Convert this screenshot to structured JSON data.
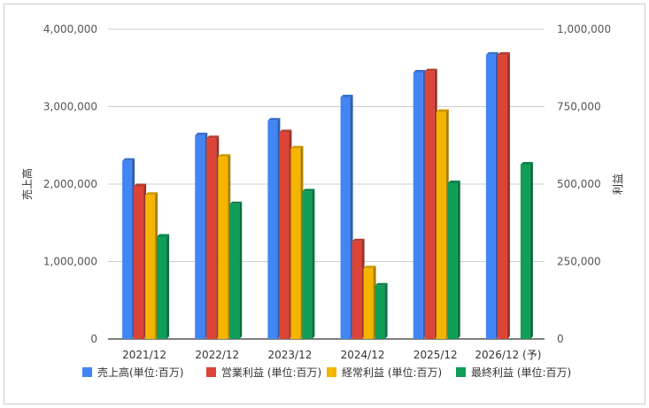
{
  "chart_data": {
    "type": "bar",
    "categories": [
      "2021/12",
      "2022/12",
      "2023/12",
      "2024/12",
      "2025/12",
      "2026/12 (予)"
    ],
    "left_axis": {
      "label": "売上高",
      "ylim": [
        0,
        4000000
      ],
      "ticks": [
        "0",
        "1,000,000",
        "2,000,000",
        "3,000,000",
        "4,000,000"
      ]
    },
    "right_axis": {
      "label": "利益",
      "ylim": [
        0,
        1000000
      ],
      "ticks": [
        "0",
        "250,000",
        "500,000",
        "750,000",
        "1,000,000"
      ]
    },
    "series": [
      {
        "name": "売上高(単位:百万)",
        "axis": "left",
        "color": "#4285f4",
        "values": [
          2300000,
          2630000,
          2820000,
          3120000,
          3440000,
          3670000
        ]
      },
      {
        "name": "営業利益 (単位:百万)",
        "axis": "right",
        "color": "#db4437",
        "values": [
          493000,
          648000,
          667000,
          315000,
          864000,
          917000
        ]
      },
      {
        "name": "経常利益 (単位:百万)",
        "axis": "right",
        "color": "#f4b400",
        "values": [
          465000,
          588000,
          615000,
          228000,
          733000,
          null
        ]
      },
      {
        "name": "最終利益 (単位:百万)",
        "axis": "right",
        "color": "#0f9d58",
        "values": [
          330000,
          435000,
          476000,
          172000,
          503000,
          563000
        ]
      }
    ],
    "grid": true,
    "legend_position": "bottom"
  }
}
